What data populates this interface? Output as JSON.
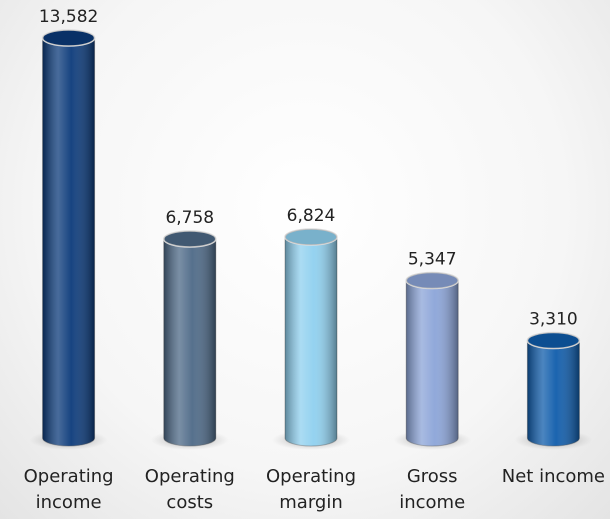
{
  "chart_data": {
    "type": "bar",
    "categories": [
      "Operating income",
      "Operating costs",
      "Operating margin",
      "Gross income",
      "Net income"
    ],
    "values": [
      13582,
      6758,
      6824,
      5347,
      3310
    ],
    "value_labels": [
      "13,582",
      "6,758",
      "6,824",
      "5,347",
      "3,310"
    ],
    "colors": [
      "#0b3a7a",
      "#4d6987",
      "#8fd0ef",
      "#8ba4d8",
      "#0f5cab"
    ]
  }
}
